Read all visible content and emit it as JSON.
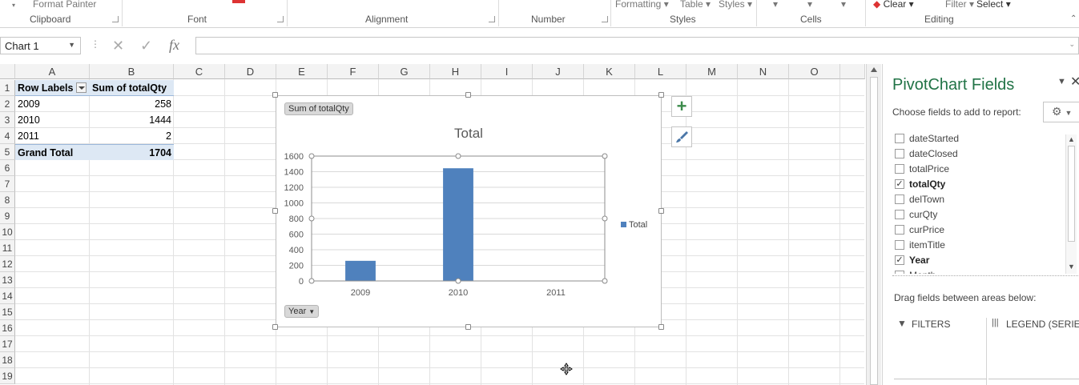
{
  "ribbon": {
    "format_painter": "Format Painter",
    "formatting": "Formatting",
    "table": "Table",
    "styles_btn": "Styles",
    "clear": "Clear",
    "filter": "Filter",
    "select": "Select",
    "groups": {
      "clipboard": "Clipboard",
      "font": "Font",
      "alignment": "Alignment",
      "number": "Number",
      "styles": "Styles",
      "cells": "Cells",
      "editing": "Editing"
    }
  },
  "formula_bar": {
    "name_box": "Chart 1",
    "fx": "fx",
    "formula": ""
  },
  "grid": {
    "columns": [
      "A",
      "B",
      "C",
      "D",
      "E",
      "F",
      "G",
      "H",
      "I",
      "J",
      "K",
      "L",
      "M",
      "N",
      "O"
    ],
    "rows": [
      "1",
      "2",
      "3",
      "4",
      "5",
      "6",
      "7",
      "8",
      "9",
      "10",
      "11",
      "12",
      "13",
      "14",
      "15",
      "16",
      "17",
      "18",
      "19"
    ],
    "pivot": {
      "header": [
        "Row Labels",
        "Sum of totalQty"
      ],
      "rows": [
        {
          "label": "2009",
          "value": "258"
        },
        {
          "label": "2010",
          "value": "1444"
        },
        {
          "label": "2011",
          "value": "2"
        }
      ],
      "total": {
        "label": "Grand Total",
        "value": "1704"
      }
    }
  },
  "chart": {
    "value_chip": "Sum of totalQty",
    "axis_chip": "Year",
    "legend": "Total",
    "bar_color": "#4f81bd"
  },
  "chart_data": {
    "type": "bar",
    "title": "Total",
    "categories": [
      "2009",
      "2010",
      "2011"
    ],
    "series": [
      {
        "name": "Total",
        "values": [
          258,
          1444,
          2
        ]
      }
    ],
    "ylim": [
      0,
      1600
    ],
    "yticks": [
      0,
      200,
      400,
      600,
      800,
      1000,
      1200,
      1400,
      1600
    ],
    "grid": true,
    "legend_position": "right"
  },
  "pivot_panel": {
    "title": "PivotChart Fields",
    "choose_label": "Choose fields to add to report:",
    "fields": [
      {
        "name": "dateStarted",
        "checked": false
      },
      {
        "name": "dateClosed",
        "checked": false
      },
      {
        "name": "totalPrice",
        "checked": false
      },
      {
        "name": "totalQty",
        "checked": true
      },
      {
        "name": "delTown",
        "checked": false
      },
      {
        "name": "curQty",
        "checked": false
      },
      {
        "name": "curPrice",
        "checked": false
      },
      {
        "name": "itemTitle",
        "checked": false
      },
      {
        "name": "Year",
        "checked": true
      },
      {
        "name": "Month",
        "checked": false
      }
    ],
    "drag_label": "Drag fields between areas below:",
    "filters_label": "FILTERS",
    "legend_label": "LEGEND (SERIES)",
    "accent": "#217346"
  }
}
